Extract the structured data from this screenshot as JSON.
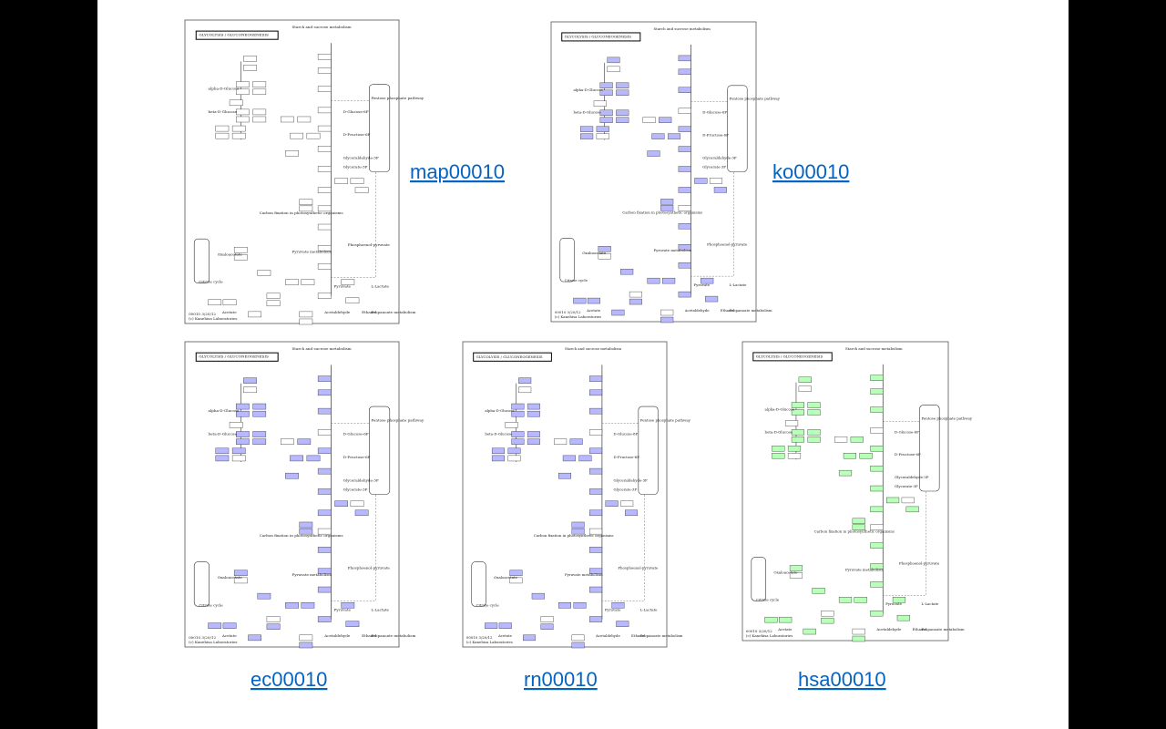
{
  "diagram": {
    "title": "GLYCOLYSIS / GLUCONEOGENESIS",
    "nodes": [
      "Starch and sucrose metabolism",
      "Pentose phosphate pathway",
      "Citrate cycle",
      "Pyruvate metabolism",
      "Propanoate metabolism",
      "Carbon fixation in photosynthetic organisms",
      "Glycerate-3P",
      "Phosphoenol-pyruvate",
      "Pyruvate",
      "L-Lactate",
      "Ethanol",
      "Acetaldehyde",
      "Acetate",
      "Oxaloacetate",
      "D-Glucose-6P",
      "D-Fructose-6P",
      "Glyceraldehyde-3P",
      "alpha-D-Glucose",
      "beta-D-Glucose"
    ],
    "footer": [
      "00010 3/20/12",
      "(c) Kanehisa Laboratories"
    ]
  },
  "maps": [
    {
      "link": "map00010",
      "fill": "#ffffff"
    },
    {
      "link": "ko00010",
      "fill": "#b8b8ff"
    },
    {
      "link": "ec00010",
      "fill": "#b8b8ff"
    },
    {
      "link": "rn00010",
      "fill": "#b8b8ff"
    },
    {
      "link": "hsa00010",
      "fill": "#b8ffb8"
    }
  ]
}
